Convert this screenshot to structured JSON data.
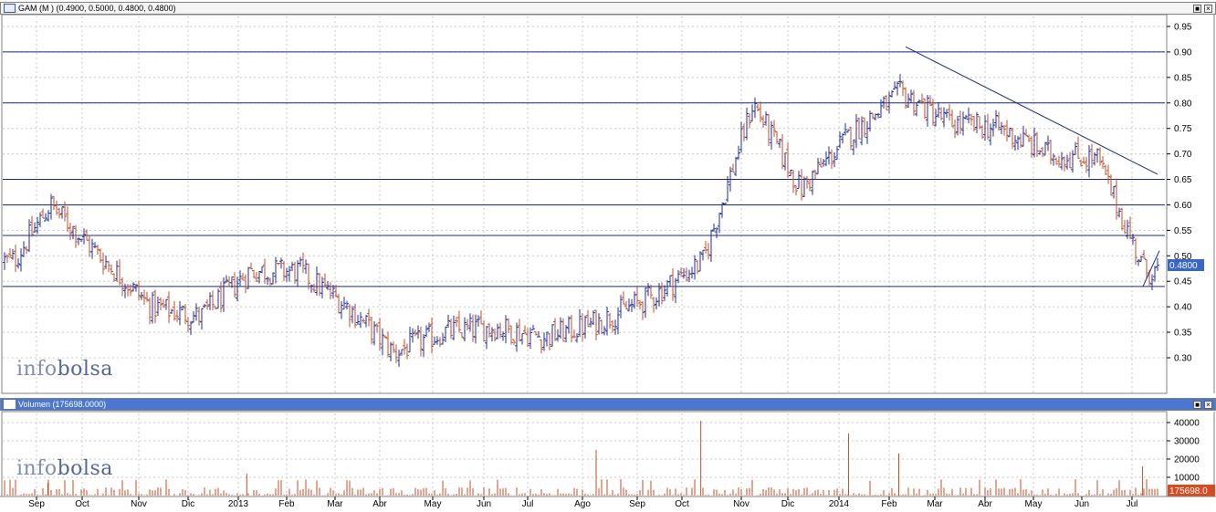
{
  "price_panel": {
    "title": "GAM (M ) (0.4900, 0.5000, 0.4800, 0.4800)",
    "last_price_label": "0.4800",
    "watermark_a": "info",
    "watermark_b": "bolsa"
  },
  "volume_panel": {
    "title": "Volumen (175698.0000)",
    "last_volume_label": "175698.0",
    "watermark_a": "info",
    "watermark_b": "bolsa"
  },
  "window_buttons": [
    "■",
    "×"
  ],
  "colors": {
    "up_bar": "#1f2f9c",
    "down_bar": "#c0522a",
    "level_line": "#1a2a80",
    "grid": "#c8c8c8",
    "volume_bar": "#c84c24",
    "price_tag_bg": "#3a66c8",
    "volume_tag_bg": "#d94a20"
  },
  "chart_data": [
    {
      "type": "bar",
      "subtype": "ohlc",
      "title": "GAM (M ) (0.4900, 0.5000, 0.4800, 0.4800)",
      "last": {
        "open": 0.49,
        "high": 0.5,
        "low": 0.48,
        "close": 0.48
      },
      "y_ticks": [
        "0.30",
        "0.35",
        "0.40",
        "0.45",
        "0.50",
        "0.55",
        "0.60",
        "0.65",
        "0.70",
        "0.75",
        "0.80",
        "0.85",
        "0.90",
        "0.95"
      ],
      "ylim": [
        0.25,
        0.97
      ],
      "x_ticks": [
        "Sep",
        "Oct",
        "Nov",
        "Dic",
        "2013",
        "Feb",
        "Mar",
        "Abr",
        "May",
        "Jun",
        "Jul",
        "Ago",
        "Sep",
        "Oct",
        "Nov",
        "Dic",
        "2014",
        "Feb",
        "Mar",
        "Abr",
        "May",
        "Jun",
        "Jul"
      ],
      "grid": true,
      "horizontal_levels": [
        0.9,
        0.8,
        0.65,
        0.6,
        0.54,
        0.44
      ],
      "trendlines": [
        {
          "from": {
            "period": "2014-02",
            "value": 0.91
          },
          "to": {
            "period": "2014-07",
            "value": 0.66
          }
        },
        {
          "from": {
            "period": "2014-07",
            "value": 0.44
          },
          "to": {
            "period": "2014-07",
            "value": 0.51
          }
        }
      ],
      "monthly_path": [
        {
          "period": "2012-08",
          "value": 0.49
        },
        {
          "period": "2012-09",
          "value": 0.6
        },
        {
          "period": "2012-10",
          "value": 0.5
        },
        {
          "period": "2012-11",
          "value": 0.4
        },
        {
          "period": "2012-12",
          "value": 0.38
        },
        {
          "period": "2013-01",
          "value": 0.47
        },
        {
          "period": "2013-02",
          "value": 0.47
        },
        {
          "period": "2013-03",
          "value": 0.4
        },
        {
          "period": "2013-04",
          "value": 0.31
        },
        {
          "period": "2013-05",
          "value": 0.35
        },
        {
          "period": "2013-06",
          "value": 0.36
        },
        {
          "period": "2013-07",
          "value": 0.34
        },
        {
          "period": "2013-08",
          "value": 0.37
        },
        {
          "period": "2013-09",
          "value": 0.42
        },
        {
          "period": "2013-10",
          "value": 0.49
        },
        {
          "period": "2013-11",
          "value": 0.8
        },
        {
          "period": "2013-12",
          "value": 0.63
        },
        {
          "period": "2014-01",
          "value": 0.74
        },
        {
          "period": "2014-02",
          "value": 0.82
        },
        {
          "period": "2014-03",
          "value": 0.76
        },
        {
          "period": "2014-04",
          "value": 0.75
        },
        {
          "period": "2014-05",
          "value": 0.7
        },
        {
          "period": "2014-06",
          "value": 0.69
        },
        {
          "period": "2014-07",
          "value": 0.47
        }
      ]
    },
    {
      "type": "bar",
      "title": "Volumen (175698.0000)",
      "y_ticks": [
        "10000",
        "20000",
        "30000",
        "40000"
      ],
      "ylim": [
        0,
        45000
      ],
      "grid": true,
      "last_value": 175698.0,
      "notable_peaks": [
        {
          "period": "2012-09",
          "value": 7000
        },
        {
          "period": "2013-01",
          "value": 12000
        },
        {
          "period": "2013-08",
          "value": 25000
        },
        {
          "period": "2013-10",
          "value": 41000
        },
        {
          "period": "2014-01",
          "value": 34000
        },
        {
          "period": "2014-02",
          "value": 23000
        },
        {
          "period": "2014-07",
          "value": 16000
        }
      ]
    }
  ]
}
